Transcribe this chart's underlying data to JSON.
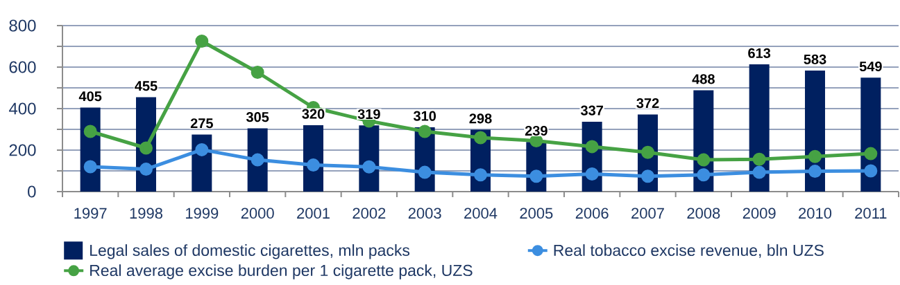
{
  "chart_data": {
    "type": "bar",
    "categories": [
      "1997",
      "1998",
      "1999",
      "2000",
      "2001",
      "2002",
      "2003",
      "2004",
      "2005",
      "2006",
      "2007",
      "2008",
      "2009",
      "2010",
      "2011"
    ],
    "series": [
      {
        "name": "Legal sales of domestic cigarettes, mln packs",
        "color": "#002060",
        "data_labels": true,
        "values": [
          405,
          455,
          275,
          305,
          320,
          319,
          310,
          298,
          239,
          337,
          372,
          488,
          613,
          583,
          549
        ]
      },
      {
        "name": "Real tobacco excise revenue, bln UZS",
        "type": "line",
        "color": "#3c8ee0",
        "values": [
          120,
          108,
          202,
          153,
          128,
          119,
          93,
          81,
          74,
          85,
          74,
          81,
          93,
          98,
          100
        ]
      },
      {
        "name": "Real average excise burden per 1 cigarette pack, UZS",
        "type": "line",
        "color": "#46a244",
        "values": [
          290,
          210,
          725,
          575,
          405,
          340,
          290,
          260,
          245,
          217,
          189,
          153,
          156,
          169,
          183
        ]
      }
    ],
    "ylim": [
      0,
      800
    ],
    "yticks": [
      0,
      {
        "value": 100,
        "label": null
      },
      200,
      {
        "value": 300,
        "label": null
      },
      400,
      {
        "value": 500,
        "label": null
      },
      600,
      {
        "value": 700,
        "label": null
      },
      800
    ],
    "grid": "y",
    "legend": "bottom",
    "marker": "circle"
  }
}
